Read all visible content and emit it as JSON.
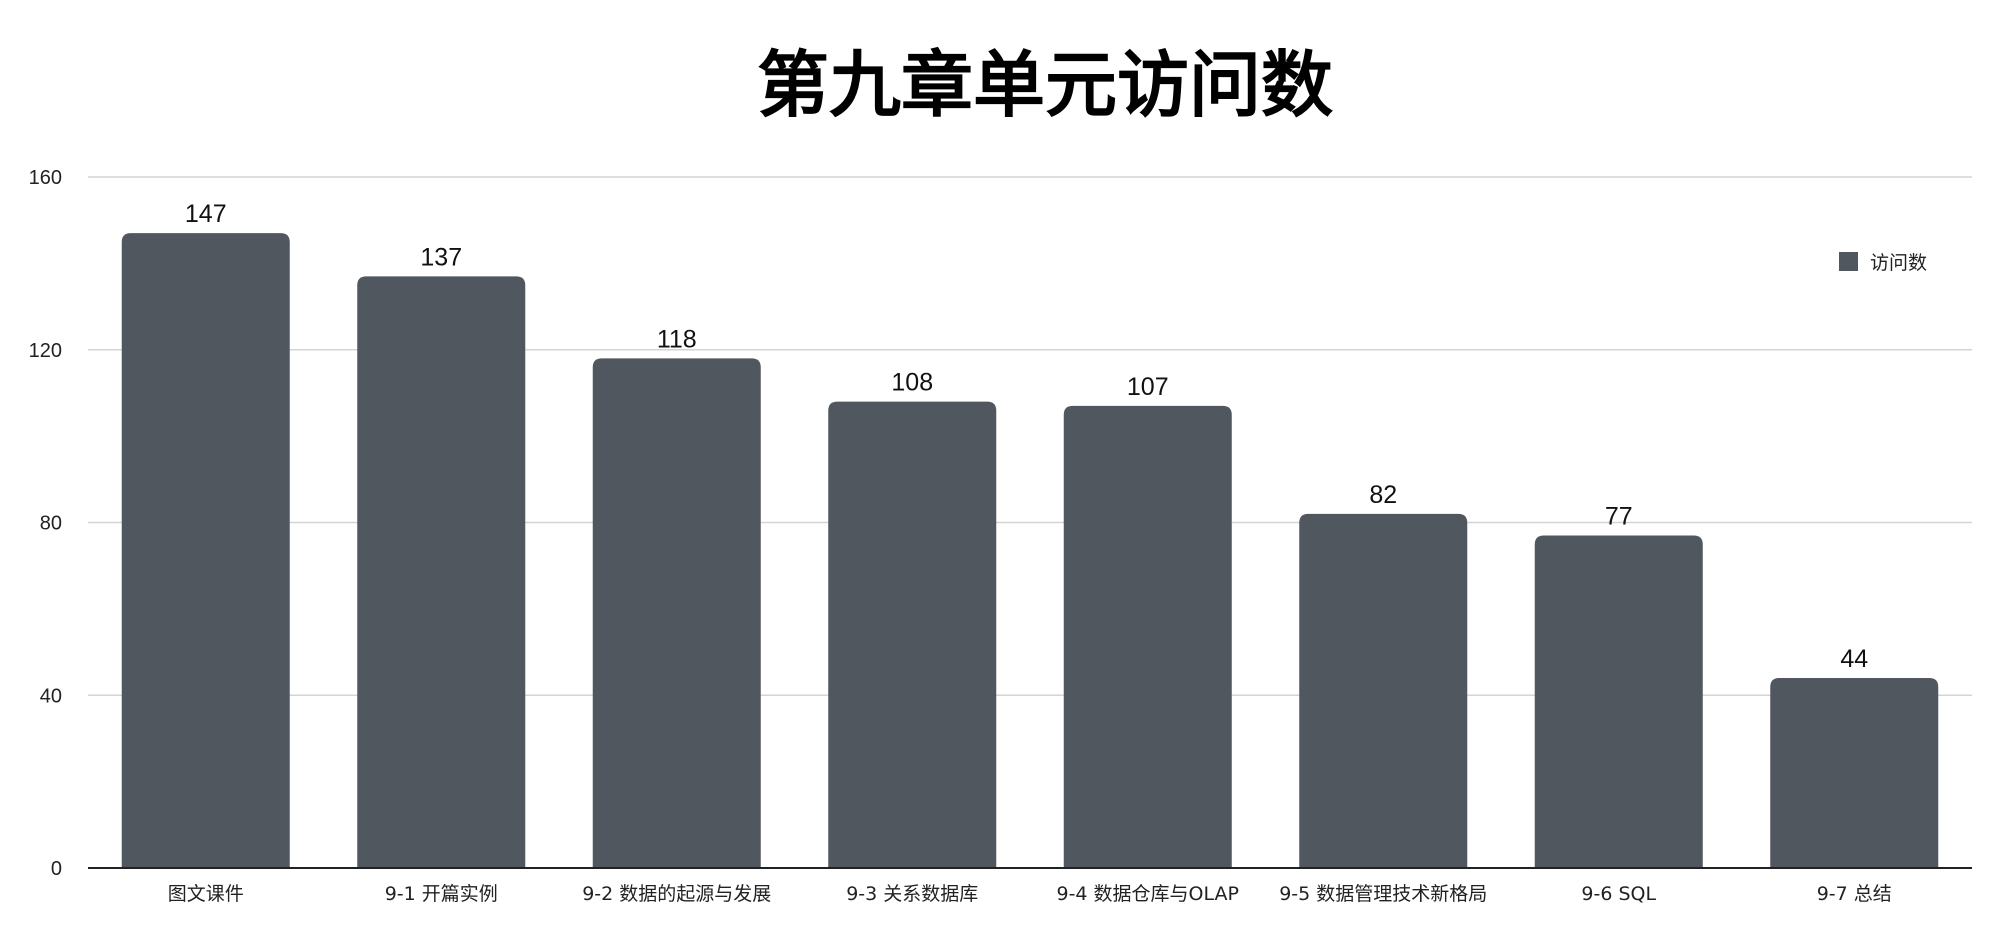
{
  "chart_data": {
    "type": "bar",
    "title": "第九章单元访问数",
    "categories": [
      "图文课件",
      "9-1 开篇实例",
      "9-2 数据的起源与发展",
      "9-3 关系数据库",
      "9-4 数据仓库与OLAP",
      "9-5 数据管理技术新格局",
      "9-6 SQL",
      "9-7 总结"
    ],
    "series": [
      {
        "name": "访问数",
        "values": [
          147,
          137,
          118,
          108,
          107,
          82,
          77,
          44
        ],
        "color": "#51575e"
      }
    ],
    "ylim": [
      0,
      160
    ],
    "yticks": [
      0,
      40,
      80,
      120,
      160
    ],
    "xlabel": "",
    "ylabel": "",
    "grid": true,
    "legend": "right",
    "data_labels": true
  }
}
